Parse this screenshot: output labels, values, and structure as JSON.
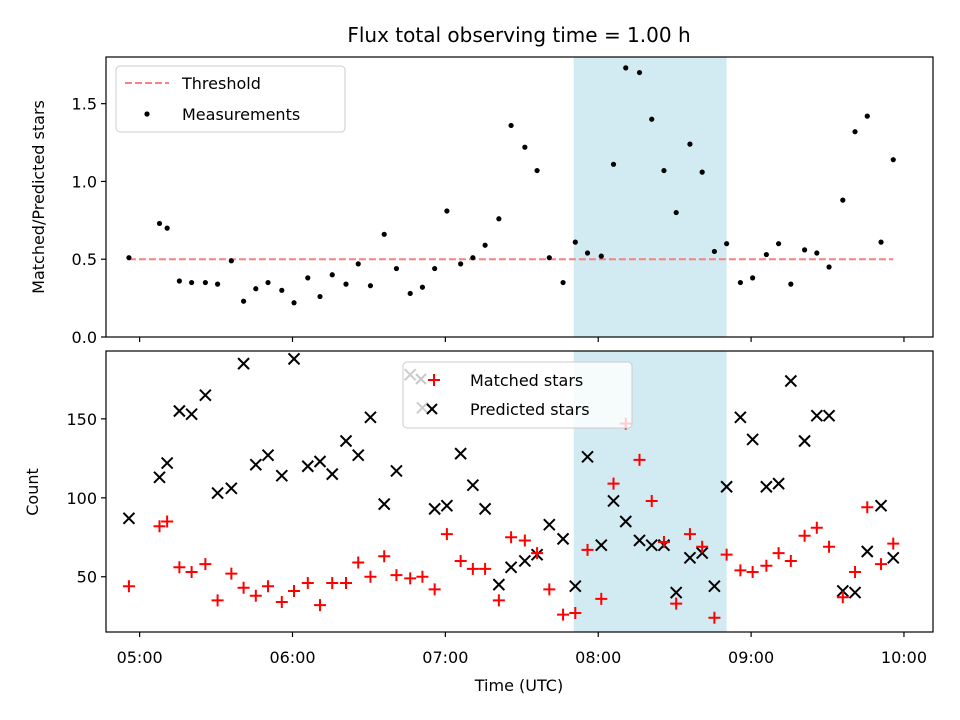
{
  "chart_data": [
    {
      "type": "scatter",
      "title": "Flux total observing time = 1.00 h",
      "ylabel": "Matched/Predicted stars",
      "xlim": [
        4.78,
        10.19
      ],
      "ylim": [
        0,
        1.8
      ],
      "y_ticks": [
        0.0,
        0.5,
        1.0,
        1.5
      ],
      "y_tick_labels": [
        "0.0",
        "0.5",
        "1.0",
        "1.5"
      ],
      "x_ticks": [
        5,
        6,
        7,
        8,
        9,
        10
      ],
      "legend": "top-left",
      "shaded_region": {
        "x": [
          7.84,
          8.84
        ],
        "color": "#add8e6"
      },
      "series": [
        {
          "name": "Threshold",
          "kind": "dashed-line",
          "color": "#ff7f7f",
          "x": [
            4.93,
            9.93
          ],
          "y": [
            0.5,
            0.5
          ]
        },
        {
          "name": "Measurements",
          "kind": "points",
          "color": "#000000",
          "x": [
            4.93,
            5.13,
            5.18,
            5.26,
            5.34,
            5.43,
            5.51,
            5.6,
            5.68,
            5.76,
            5.84,
            5.93,
            6.01,
            6.1,
            6.18,
            6.26,
            6.35,
            6.43,
            6.51,
            6.6,
            6.68,
            6.77,
            6.85,
            6.93,
            7.01,
            7.1,
            7.18,
            7.26,
            7.35,
            7.43,
            7.52,
            7.6,
            7.68,
            7.77,
            7.85,
            7.93,
            8.02,
            8.1,
            8.18,
            8.27,
            8.35,
            8.43,
            8.51,
            8.6,
            8.68,
            8.76,
            8.84,
            8.93,
            9.01,
            9.1,
            9.18,
            9.26,
            9.35,
            9.43,
            9.51,
            9.6,
            9.68,
            9.76,
            9.85,
            9.93
          ],
          "y": [
            0.51,
            0.73,
            0.7,
            0.36,
            0.35,
            0.35,
            0.34,
            0.49,
            0.23,
            0.31,
            0.35,
            0.3,
            0.22,
            0.38,
            0.26,
            0.4,
            0.34,
            0.47,
            0.33,
            0.66,
            0.44,
            0.28,
            0.32,
            0.44,
            0.81,
            0.47,
            0.51,
            0.59,
            0.76,
            1.36,
            1.22,
            1.07,
            0.51,
            0.35,
            0.61,
            0.54,
            0.52,
            1.11,
            1.73,
            1.7,
            1.4,
            1.07,
            0.8,
            1.24,
            1.06,
            0.55,
            0.6,
            0.35,
            0.38,
            0.53,
            0.6,
            0.34,
            0.56,
            0.54,
            0.45,
            0.88,
            1.32,
            1.42,
            0.61,
            1.14
          ]
        }
      ]
    },
    {
      "type": "scatter",
      "xlabel": "Time (UTC)",
      "ylabel": "Count",
      "xlim": [
        4.78,
        10.19
      ],
      "ylim": [
        15,
        193
      ],
      "y_ticks": [
        50,
        100,
        150
      ],
      "y_tick_labels": [
        "50",
        "100",
        "150"
      ],
      "x_ticks": [
        5,
        6,
        7,
        8,
        9,
        10
      ],
      "x_tick_labels": [
        "05:00",
        "06:00",
        "07:00",
        "08:00",
        "09:00",
        "10:00"
      ],
      "legend": "top-center",
      "shaded_region": {
        "x": [
          7.84,
          8.84
        ],
        "color": "#add8e6"
      },
      "series": [
        {
          "name": "Matched stars",
          "marker": "plus",
          "color": "#ff0000",
          "x": [
            4.93,
            5.13,
            5.18,
            5.26,
            5.34,
            5.43,
            5.51,
            5.6,
            5.68,
            5.76,
            5.84,
            5.93,
            6.01,
            6.1,
            6.18,
            6.26,
            6.35,
            6.43,
            6.51,
            6.6,
            6.68,
            6.77,
            6.85,
            6.93,
            7.01,
            7.1,
            7.18,
            7.26,
            7.35,
            7.43,
            7.52,
            7.6,
            7.68,
            7.77,
            7.85,
            7.93,
            8.02,
            8.1,
            8.18,
            8.27,
            8.35,
            8.43,
            8.51,
            8.6,
            8.68,
            8.76,
            8.84,
            8.93,
            9.01,
            9.1,
            9.18,
            9.26,
            9.35,
            9.43,
            9.51,
            9.6,
            9.68,
            9.76,
            9.85,
            9.93
          ],
          "y": [
            44,
            82,
            85,
            56,
            53,
            58,
            35,
            52,
            43,
            38,
            44,
            34,
            41,
            46,
            32,
            46,
            46,
            59,
            50,
            63,
            51,
            49,
            50,
            42,
            77,
            60,
            55,
            55,
            35,
            75,
            73,
            65,
            42,
            26,
            27,
            67,
            36,
            109,
            147,
            124,
            98,
            72,
            33,
            77,
            69,
            24,
            64,
            54,
            53,
            57,
            65,
            60,
            76,
            81,
            69,
            37,
            53,
            94,
            58,
            71
          ]
        },
        {
          "name": "Predicted stars",
          "marker": "x",
          "color": "#000000",
          "x": [
            4.93,
            5.13,
            5.18,
            5.26,
            5.34,
            5.43,
            5.51,
            5.6,
            5.68,
            5.76,
            5.84,
            5.93,
            6.01,
            6.1,
            6.18,
            6.26,
            6.35,
            6.43,
            6.51,
            6.6,
            6.68,
            6.77,
            6.85,
            6.93,
            7.01,
            7.1,
            7.18,
            7.26,
            7.35,
            7.43,
            7.52,
            7.6,
            7.68,
            7.77,
            7.85,
            7.93,
            8.02,
            8.1,
            8.18,
            8.27,
            8.35,
            8.43,
            8.51,
            8.6,
            8.68,
            8.76,
            8.84,
            8.93,
            9.01,
            9.1,
            9.18,
            9.26,
            9.35,
            9.43,
            9.51,
            9.6,
            9.68,
            9.76,
            9.85,
            9.93
          ],
          "y": [
            87,
            113,
            122,
            155,
            153,
            165,
            103,
            106,
            185,
            121,
            127,
            114,
            188,
            120,
            123,
            115,
            136,
            127,
            151,
            96,
            117,
            178,
            157,
            93,
            95,
            128,
            108,
            93,
            45,
            56,
            60,
            64,
            83,
            74,
            44,
            126,
            70,
            98,
            85,
            73,
            70,
            70,
            40,
            62,
            65,
            44,
            107,
            151,
            137,
            107,
            109,
            174,
            136,
            152,
            152,
            41,
            40,
            66,
            95,
            62
          ]
        }
      ]
    }
  ]
}
